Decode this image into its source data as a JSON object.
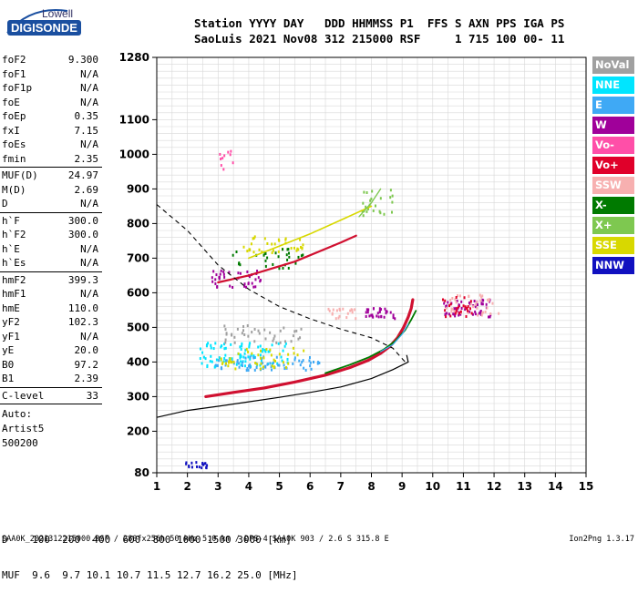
{
  "logo": {
    "line1": "Lowell",
    "line2": "DIGISONDE"
  },
  "header": {
    "line1": "Station YYYY DAY   DDD HHMMSS P1  FFS S AXN PPS IGA PS",
    "line2": "SaoLuis 2021 Nov08 312 215000 RSF     1 715 100 00- 11"
  },
  "params": [
    {
      "key": "foF2",
      "value": "9.300"
    },
    {
      "key": "foF1",
      "value": "N/A"
    },
    {
      "key": "foF1p",
      "value": "N/A"
    },
    {
      "key": "foE",
      "value": "N/A"
    },
    {
      "key": "foEp",
      "value": "0.35"
    },
    {
      "key": "fxI",
      "value": "7.15"
    },
    {
      "key": "foEs",
      "value": "N/A"
    },
    {
      "key": "fmin",
      "value": "2.35"
    },
    {
      "sep": true
    },
    {
      "key": "MUF(D)",
      "value": "24.97"
    },
    {
      "key": "M(D)",
      "value": "2.69"
    },
    {
      "key": "D",
      "value": "N/A"
    },
    {
      "sep": true
    },
    {
      "key": "h`F",
      "value": "300.0"
    },
    {
      "key": "h`F2",
      "value": "300.0"
    },
    {
      "key": "h`E",
      "value": "N/A"
    },
    {
      "key": "h`Es",
      "value": "N/A"
    },
    {
      "sep": true
    },
    {
      "key": "hmF2",
      "value": "399.3"
    },
    {
      "key": "hmF1",
      "value": "N/A"
    },
    {
      "key": "hmE",
      "value": "110.0"
    },
    {
      "key": "yF2",
      "value": "102.3"
    },
    {
      "key": "yF1",
      "value": "N/A"
    },
    {
      "key": "yE",
      "value": "20.0"
    },
    {
      "key": "B0",
      "value": "97.2"
    },
    {
      "key": "B1",
      "value": "2.39"
    },
    {
      "sep": true
    },
    {
      "key": "C-level",
      "value": "33"
    },
    {
      "sep": true
    }
  ],
  "auto": {
    "line1": "Auto:",
    "line2": "Artist5",
    "line3": "500200"
  },
  "legend": [
    {
      "label": "NoVal",
      "color": "#a0a0a0"
    },
    {
      "label": "NNE",
      "color": "#00e5ff"
    },
    {
      "label": "E",
      "color": "#3fa9f5"
    },
    {
      "label": "W",
      "color": "#a0009a"
    },
    {
      "label": "Vo-",
      "color": "#ff4fa8"
    },
    {
      "label": "Vo+",
      "color": "#e0002a"
    },
    {
      "label": "SSW",
      "color": "#f7b0b0"
    },
    {
      "label": "X-",
      "color": "#007a00"
    },
    {
      "label": "X+",
      "color": "#7ec850"
    },
    {
      "label": "SSE",
      "color": "#d8d800"
    },
    {
      "label": "NNW",
      "color": "#1010c0"
    }
  ],
  "muf_table": {
    "line1": "D    100  200  400  600  800 1000 1500 3000 [km]",
    "line2": "MUF  9.6  9.7 10.1 10.7 11.5 12.7 16.2 25.0 [MHz]"
  },
  "footer": {
    "left": "SAA0K_2021312215000.RSF / 280fx256h 50 kHz 5.0 km / DPS-4 SAA0K 903 / 2.6 S 315.8 E",
    "right": "Ion2Png 1.3.17"
  },
  "chart_data": {
    "type": "scatter",
    "title": "",
    "xlabel": "",
    "ylabel": "",
    "xlim": [
      1,
      15
    ],
    "ylim": [
      80,
      1280
    ],
    "x_ticks": [
      1,
      2,
      3,
      4,
      5,
      6,
      7,
      8,
      9,
      10,
      11,
      12,
      13,
      14,
      15
    ],
    "y_ticks": [
      80,
      200,
      300,
      400,
      500,
      600,
      700,
      800,
      900,
      1000,
      1100,
      1280
    ],
    "grid": true,
    "legend_position": "right",
    "traces": [
      {
        "name": "trace-o",
        "color": "#d01030",
        "width": 3.2,
        "points": [
          [
            2.6,
            300
          ],
          [
            3.5,
            312
          ],
          [
            4.5,
            325
          ],
          [
            5.5,
            342
          ],
          [
            6.5,
            362
          ],
          [
            7.3,
            384
          ],
          [
            7.9,
            405
          ],
          [
            8.3,
            425
          ],
          [
            8.6,
            445
          ],
          [
            8.85,
            470
          ],
          [
            9.05,
            500
          ],
          [
            9.2,
            530
          ],
          [
            9.3,
            555
          ],
          [
            9.35,
            580
          ]
        ]
      },
      {
        "name": "trace-x",
        "color": "#007a00",
        "width": 1.8,
        "points": [
          [
            6.5,
            368
          ],
          [
            7.3,
            392
          ],
          [
            7.9,
            413
          ],
          [
            8.4,
            436
          ],
          [
            8.8,
            462
          ],
          [
            9.1,
            492
          ],
          [
            9.3,
            522
          ],
          [
            9.45,
            548
          ]
        ]
      },
      {
        "name": "trace-e",
        "color": "#3fa9f5",
        "width": 1.2,
        "points": [
          [
            8.3,
            430
          ],
          [
            8.7,
            450
          ],
          [
            9.0,
            480
          ],
          [
            9.2,
            510
          ]
        ]
      },
      {
        "name": "second-hop",
        "color": "#d01030",
        "width": 2.2,
        "points": [
          [
            3.0,
            630
          ],
          [
            4.0,
            650
          ],
          [
            5.5,
            690
          ],
          [
            7.0,
            745
          ],
          [
            7.5,
            765
          ]
        ]
      },
      {
        "name": "multi-hop-1",
        "color": "#d8d800",
        "width": 1.6,
        "points": [
          [
            4.0,
            700
          ],
          [
            5.0,
            735
          ],
          [
            6.0,
            770
          ],
          [
            7.0,
            810
          ],
          [
            8.0,
            850
          ]
        ]
      },
      {
        "name": "multi-hop-2",
        "color": "#7ec850",
        "width": 1.4,
        "points": [
          [
            7.6,
            820
          ],
          [
            8.0,
            860
          ],
          [
            8.3,
            900
          ]
        ]
      }
    ],
    "profile_solid": [
      [
        1,
        240
      ],
      [
        2,
        260
      ],
      [
        3,
        272
      ],
      [
        4,
        285
      ],
      [
        5,
        298
      ],
      [
        6,
        312
      ],
      [
        7,
        328
      ],
      [
        8,
        352
      ],
      [
        8.7,
        378
      ],
      [
        9.2,
        400
      ],
      [
        9.15,
        420
      ]
    ],
    "profile_dashed": [
      [
        1,
        855
      ],
      [
        2,
        780
      ],
      [
        3,
        680
      ],
      [
        4,
        610
      ],
      [
        5,
        560
      ],
      [
        6,
        525
      ],
      [
        7,
        495
      ],
      [
        8,
        470
      ],
      [
        8.7,
        440
      ],
      [
        9.1,
        400
      ]
    ],
    "clusters": [
      {
        "color": "#00e5ff",
        "cx": 3.9,
        "cy": 420,
        "dx": 1.5,
        "dy": 35,
        "n": 90
      },
      {
        "color": "#3fa9f5",
        "cx": 4.6,
        "cy": 395,
        "dx": 1.8,
        "dy": 20,
        "n": 70
      },
      {
        "color": "#d8d800",
        "cx": 4.5,
        "cy": 410,
        "dx": 1.4,
        "dy": 30,
        "n": 45
      },
      {
        "color": "#a0a0a0",
        "cx": 4.5,
        "cy": 480,
        "dx": 1.3,
        "dy": 25,
        "n": 40
      },
      {
        "color": "#a0009a",
        "cx": 11.1,
        "cy": 555,
        "dx": 0.8,
        "dy": 25,
        "n": 55
      },
      {
        "color": "#f7b0b0",
        "cx": 11.3,
        "cy": 565,
        "dx": 0.9,
        "dy": 30,
        "n": 40
      },
      {
        "color": "#e0002a",
        "cx": 10.8,
        "cy": 560,
        "dx": 0.5,
        "dy": 30,
        "n": 25
      },
      {
        "color": "#a0009a",
        "cx": 8.3,
        "cy": 540,
        "dx": 0.5,
        "dy": 15,
        "n": 30
      },
      {
        "color": "#f7b0b0",
        "cx": 7.0,
        "cy": 540,
        "dx": 0.5,
        "dy": 15,
        "n": 20
      },
      {
        "color": "#a0009a",
        "cx": 3.6,
        "cy": 640,
        "dx": 0.8,
        "dy": 25,
        "n": 40
      },
      {
        "color": "#1010c0",
        "cx": 2.3,
        "cy": 102,
        "dx": 0.35,
        "dy": 10,
        "n": 18
      },
      {
        "color": "#d8d800",
        "cx": 4.8,
        "cy": 740,
        "dx": 1.0,
        "dy": 25,
        "n": 35
      },
      {
        "color": "#007a00",
        "cx": 4.6,
        "cy": 700,
        "dx": 1.2,
        "dy": 30,
        "n": 30
      },
      {
        "color": "#ff4fa8",
        "cx": 3.3,
        "cy": 980,
        "dx": 0.25,
        "dy": 30,
        "n": 10
      },
      {
        "color": "#7ec850",
        "cx": 8.2,
        "cy": 860,
        "dx": 0.5,
        "dy": 40,
        "n": 25
      }
    ]
  }
}
